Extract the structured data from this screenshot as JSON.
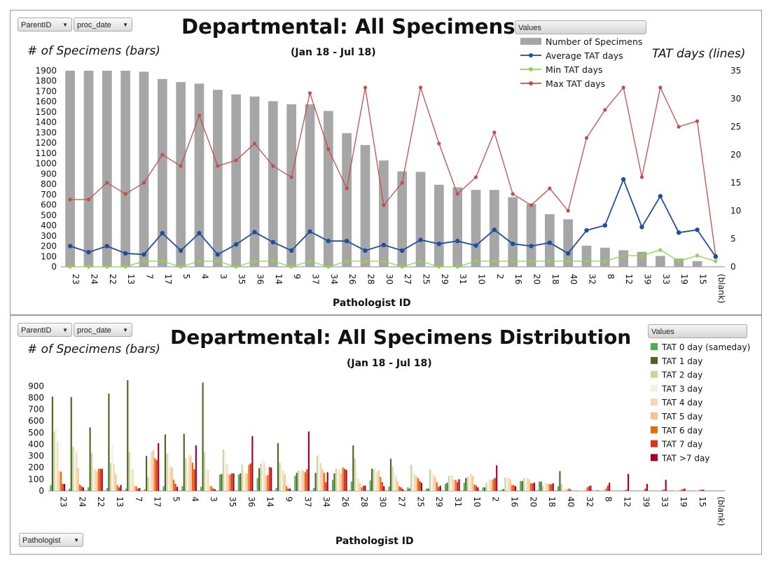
{
  "chart_data": [
    {
      "type": "bar+line",
      "title": "Departmental: All Specimens",
      "subtitle": "(Jan 18 - Jul 18)",
      "ylabel_left": "# of Specimens (bars)",
      "ylabel_right": "TAT days (lines)",
      "xlabel": "Pathologist ID",
      "filters": [
        "ParentID",
        "proc_date"
      ],
      "legend_header": "Values",
      "categories": [
        "23",
        "24",
        "22",
        "13",
        "7",
        "17",
        "5",
        "4",
        "3",
        "35",
        "36",
        "14",
        "9",
        "37",
        "34",
        "26",
        "28",
        "30",
        "27",
        "25",
        "29",
        "31",
        "10",
        "2",
        "16",
        "20",
        "18",
        "40",
        "32",
        "8",
        "12",
        "39",
        "33",
        "19",
        "15",
        "(blank)"
      ],
      "ylim_left": [
        0,
        1900
      ],
      "yticks_left": [
        0,
        100,
        200,
        300,
        400,
        500,
        600,
        700,
        800,
        900,
        1000,
        1100,
        1200,
        1300,
        1400,
        1500,
        1600,
        1700,
        1800,
        1900
      ],
      "ylim_right": [
        0,
        35
      ],
      "yticks_right": [
        0,
        5,
        10,
        15,
        20,
        25,
        30,
        35
      ],
      "bars": {
        "name": "Number of Specimens",
        "color": "#a6a6a6",
        "values": [
          1900,
          1900,
          1900,
          1900,
          1890,
          1820,
          1790,
          1775,
          1715,
          1670,
          1650,
          1605,
          1575,
          1575,
          1510,
          1295,
          1180,
          1030,
          925,
          920,
          795,
          770,
          745,
          745,
          675,
          610,
          510,
          460,
          205,
          185,
          160,
          145,
          105,
          80,
          55,
          0
        ]
      },
      "series": [
        {
          "name": "Average TAT days",
          "color": "#1f4e9c",
          "values": [
            3.7,
            2.6,
            3.7,
            2.4,
            2.2,
            6,
            2.9,
            6,
            2.2,
            4,
            6.2,
            4.4,
            2.9,
            6.3,
            4.6,
            4.6,
            2.9,
            3.9,
            2.9,
            4.8,
            4.1,
            4.6,
            3.8,
            6.6,
            4.1,
            3.7,
            4.3,
            2.4,
            6.5,
            7.4,
            15.6,
            7.1,
            12.6,
            6.1,
            6.6,
            1.8
          ]
        },
        {
          "name": "Min TAT days",
          "color": "#92d050",
          "values": [
            0,
            0,
            0,
            0,
            1,
            1,
            0,
            1,
            1,
            0,
            1,
            1,
            0,
            1,
            0,
            1,
            1,
            1,
            0,
            1,
            0,
            0,
            1,
            1,
            1,
            1,
            1,
            1,
            1,
            1,
            2,
            2,
            3,
            1,
            2,
            1
          ]
        },
        {
          "name": "Max TAT days",
          "color": "#c0504d",
          "values": [
            12,
            12,
            15,
            13,
            15,
            20,
            18,
            27,
            18,
            19,
            22,
            18,
            16,
            31,
            21,
            14,
            32,
            11,
            15,
            32,
            22,
            13,
            16,
            24,
            13,
            11,
            14,
            10,
            23,
            28,
            32,
            16,
            32,
            25,
            26,
            2
          ]
        }
      ]
    },
    {
      "type": "bar",
      "title": "Departmental: All Specimens Distribution",
      "subtitle": "(Jan 18 - Jul 18)",
      "ylabel": "# of Specimens (bars)",
      "xlabel": "Pathologist ID",
      "filters": [
        "ParentID",
        "proc_date"
      ],
      "row_filter": "Pathologist",
      "legend_header": "Values",
      "categories": [
        "23",
        "24",
        "22",
        "13",
        "7",
        "17",
        "5",
        "4",
        "3",
        "35",
        "36",
        "14",
        "9",
        "37",
        "34",
        "26",
        "28",
        "30",
        "27",
        "25",
        "29",
        "31",
        "10",
        "2",
        "16",
        "20",
        "18",
        "40",
        "32",
        "8",
        "12",
        "39",
        "33",
        "19",
        "15",
        "(blank)"
      ],
      "ylim": [
        0,
        950
      ],
      "yticks": [
        0,
        100,
        200,
        300,
        400,
        500,
        600,
        700,
        800,
        900
      ],
      "series": [
        {
          "name": "TAT 0 day (sameday)",
          "color": "#4caf50",
          "values": [
            50,
            20,
            30,
            25,
            20,
            15,
            40,
            40,
            35,
            140,
            140,
            110,
            25,
            130,
            25,
            95,
            80,
            90,
            35,
            30,
            20,
            60,
            70,
            30,
            10,
            85,
            80,
            40,
            0,
            0,
            0,
            0,
            0,
            0,
            0,
            0
          ]
        },
        {
          "name": "TAT 1 day",
          "color": "#4f6228",
          "values": [
            810,
            805,
            545,
            835,
            950,
            300,
            485,
            490,
            930,
            145,
            150,
            195,
            410,
            155,
            155,
            150,
            390,
            190,
            275,
            20,
            20,
            70,
            110,
            30,
            15,
            85,
            80,
            170,
            0,
            5,
            0,
            0,
            0,
            0,
            0,
            0
          ]
        },
        {
          "name": "TAT 2 day",
          "color": "#c4d79b",
          "values": [
            510,
            380,
            325,
            240,
            335,
            120,
            320,
            285,
            330,
            355,
            225,
            235,
            245,
            175,
            300,
            190,
            280,
            185,
            210,
            225,
            185,
            130,
            120,
            70,
            115,
            110,
            45,
            60,
            5,
            0,
            0,
            0,
            0,
            0,
            0,
            0
          ]
        },
        {
          "name": "TAT 3 day",
          "color": "#f2f2e6",
          "values": [
            545,
            370,
            205,
            400,
            200,
            285,
            330,
            225,
            195,
            350,
            155,
            270,
            225,
            165,
            315,
            200,
            175,
            195,
            170,
            190,
            175,
            140,
            130,
            95,
            125,
            100,
            60,
            20,
            5,
            5,
            0,
            0,
            0,
            5,
            0,
            0
          ]
        },
        {
          "name": "TAT 4 day",
          "color": "#fcd5b5",
          "values": [
            420,
            330,
            190,
            235,
            185,
            335,
            210,
            310,
            180,
            230,
            150,
            240,
            175,
            180,
            240,
            185,
            100,
            165,
            125,
            140,
            140,
            130,
            150,
            100,
            110,
            110,
            65,
            15,
            10,
            10,
            0,
            5,
            5,
            10,
            5,
            0
          ]
        },
        {
          "name": "TAT 5 day",
          "color": "#fac090",
          "values": [
            170,
            195,
            165,
            145,
            40,
            350,
            200,
            295,
            45,
            145,
            150,
            130,
            140,
            170,
            185,
            150,
            65,
            175,
            85,
            125,
            120,
            95,
            125,
            90,
            100,
            100,
            60,
            10,
            10,
            10,
            5,
            5,
            5,
            10,
            5,
            0
          ]
        },
        {
          "name": "TAT 6 day",
          "color": "#e26b0a",
          "values": [
            165,
            55,
            190,
            50,
            40,
            280,
            95,
            240,
            40,
            140,
            225,
            135,
            40,
            160,
            155,
            200,
            30,
            120,
            40,
            110,
            75,
            95,
            55,
            100,
            50,
            65,
            60,
            20,
            30,
            20,
            5,
            5,
            10,
            10,
            10,
            0
          ]
        },
        {
          "name": "TAT 7 day",
          "color": "#e0301e",
          "values": [
            60,
            40,
            190,
            30,
            20,
            265,
            60,
            185,
            20,
            150,
            235,
            205,
            20,
            185,
            75,
            190,
            45,
            75,
            30,
            85,
            35,
            75,
            45,
            110,
            50,
            65,
            55,
            15,
            40,
            45,
            10,
            20,
            10,
            15,
            10,
            0
          ]
        },
        {
          "name": "TAT >7 day",
          "color": "#a50021",
          "values": [
            60,
            30,
            190,
            50,
            25,
            410,
            35,
            390,
            15,
            150,
            470,
            200,
            20,
            510,
            160,
            180,
            45,
            40,
            15,
            70,
            45,
            100,
            30,
            220,
            40,
            70,
            65,
            0,
            45,
            70,
            145,
            60,
            95,
            20,
            10,
            0
          ]
        }
      ]
    }
  ]
}
